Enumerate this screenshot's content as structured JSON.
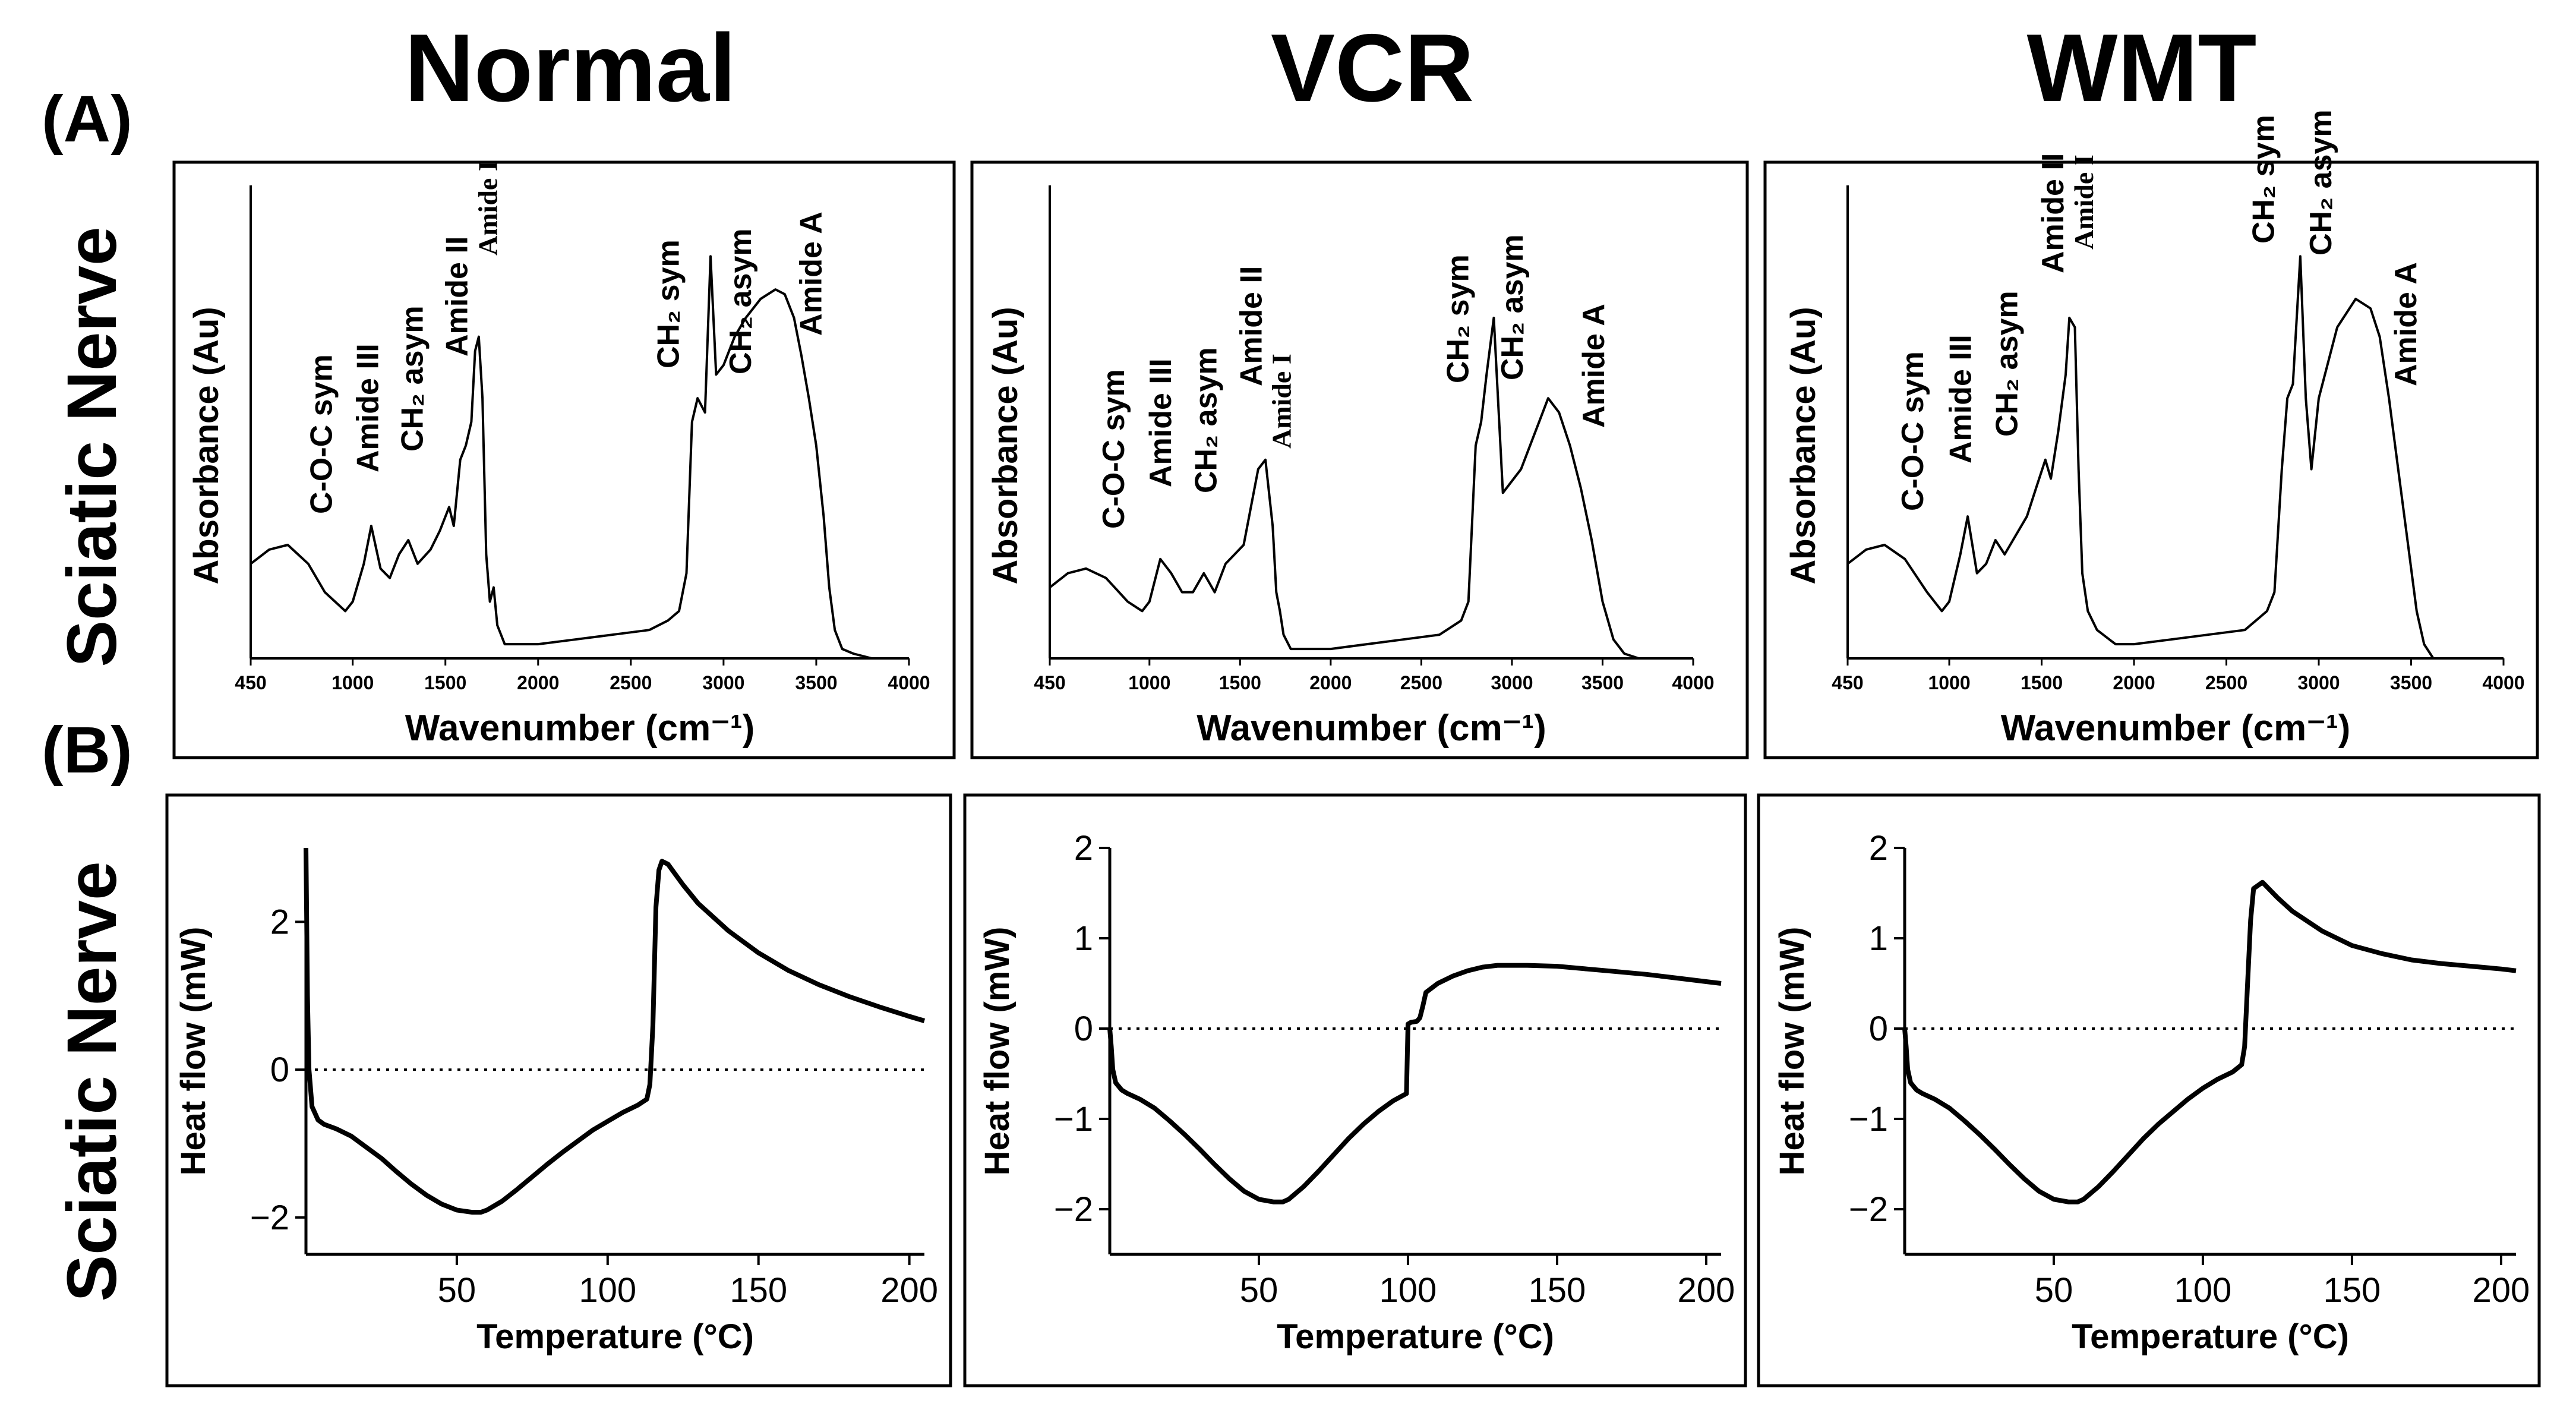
{
  "figure": {
    "panel_a_label": "(A)",
    "panel_b_label": "(B)",
    "row_label_a": "Sciatic Nerve",
    "row_label_b": "Sciatic Nerve",
    "column_titles": [
      "Normal",
      "VCR",
      "WMT"
    ]
  },
  "chart_data": [
    {
      "id": "ftir-normal",
      "type": "line",
      "group": "FTIR",
      "column": "Normal",
      "xlabel": "Wavenumber (cm⁻¹)",
      "ylabel": "Absorbance (Au)",
      "xlim": [
        450,
        4000
      ],
      "ylim": [
        0,
        1
      ],
      "xticks": [
        450,
        1000,
        1500,
        2000,
        2500,
        3000,
        3500,
        4000
      ],
      "annotations": [
        {
          "text": "C-O-C sym",
          "x": 830
        },
        {
          "text": "Amide III",
          "x": 1080
        },
        {
          "text": "CH₂ asym",
          "x": 1320
        },
        {
          "text": "Amide II",
          "x": 1560
        },
        {
          "text": "Amide I",
          "x": 1720
        },
        {
          "text": "CH₂ sym",
          "x": 2700
        },
        {
          "text": "CH₂ asym",
          "x": 3090
        },
        {
          "text": "Amide A",
          "x": 3470
        }
      ],
      "series": [
        {
          "name": "Normal",
          "x": [
            450,
            550,
            650,
            760,
            850,
            960,
            1000,
            1060,
            1100,
            1150,
            1200,
            1250,
            1300,
            1350,
            1420,
            1470,
            1520,
            1545,
            1580,
            1610,
            1640,
            1660,
            1680,
            1700,
            1720,
            1740,
            1760,
            1780,
            1820,
            1900,
            2000,
            2200,
            2400,
            2600,
            2700,
            2760,
            2800,
            2830,
            2860,
            2900,
            2930,
            2960,
            3000,
            3060,
            3120,
            3200,
            3280,
            3330,
            3380,
            3420,
            3460,
            3500,
            3540,
            3570,
            3600,
            3640,
            3700,
            3800,
            4000
          ],
          "values": [
            0.2,
            0.23,
            0.24,
            0.2,
            0.14,
            0.1,
            0.12,
            0.2,
            0.28,
            0.19,
            0.17,
            0.22,
            0.25,
            0.2,
            0.23,
            0.27,
            0.32,
            0.28,
            0.42,
            0.45,
            0.5,
            0.65,
            0.68,
            0.55,
            0.22,
            0.12,
            0.15,
            0.07,
            0.03,
            0.03,
            0.03,
            0.04,
            0.05,
            0.06,
            0.08,
            0.1,
            0.18,
            0.5,
            0.55,
            0.52,
            0.85,
            0.6,
            0.62,
            0.68,
            0.72,
            0.76,
            0.78,
            0.77,
            0.72,
            0.64,
            0.55,
            0.45,
            0.3,
            0.15,
            0.06,
            0.02,
            0.01,
            0.0,
            0.0
          ]
        }
      ]
    },
    {
      "id": "ftir-vcr",
      "type": "line",
      "group": "FTIR",
      "column": "VCR",
      "xlabel": "Wavenumber (cm⁻¹)",
      "ylabel": "Absorbance (Au)",
      "xlim": [
        450,
        4000
      ],
      "ylim": [
        0,
        1
      ],
      "xticks": [
        450,
        1000,
        1500,
        2000,
        2500,
        3000,
        3500,
        4000
      ],
      "annotations": [
        {
          "text": "C-O-C sym",
          "x": 800
        },
        {
          "text": "Amide III",
          "x": 1060
        },
        {
          "text": "CH₂ asym",
          "x": 1310
        },
        {
          "text": "Amide II",
          "x": 1560
        },
        {
          "text": "Amide I",
          "x": 1720
        },
        {
          "text": "CH₂ sym",
          "x": 2700
        },
        {
          "text": "CH₂ asym",
          "x": 3000
        },
        {
          "text": "Amide A",
          "x": 3450
        }
      ],
      "series": [
        {
          "name": "VCR",
          "x": [
            450,
            550,
            650,
            760,
            880,
            960,
            1000,
            1060,
            1120,
            1180,
            1240,
            1300,
            1360,
            1420,
            1470,
            1520,
            1560,
            1600,
            1640,
            1680,
            1700,
            1720,
            1740,
            1780,
            1850,
            2000,
            2200,
            2400,
            2600,
            2720,
            2760,
            2800,
            2830,
            2860,
            2900,
            2950,
            3050,
            3150,
            3200,
            3260,
            3320,
            3380,
            3440,
            3500,
            3560,
            3620,
            3700,
            3800,
            3900
          ],
          "values": [
            0.15,
            0.18,
            0.19,
            0.17,
            0.12,
            0.1,
            0.12,
            0.21,
            0.18,
            0.14,
            0.14,
            0.18,
            0.14,
            0.2,
            0.22,
            0.24,
            0.32,
            0.4,
            0.42,
            0.28,
            0.14,
            0.1,
            0.05,
            0.02,
            0.02,
            0.02,
            0.03,
            0.04,
            0.05,
            0.08,
            0.12,
            0.45,
            0.5,
            0.6,
            0.72,
            0.35,
            0.4,
            0.5,
            0.55,
            0.52,
            0.45,
            0.36,
            0.25,
            0.12,
            0.04,
            0.01,
            0.0,
            0.0,
            0.0
          ]
        }
      ]
    },
    {
      "id": "ftir-wmt",
      "type": "line",
      "group": "FTIR",
      "column": "WMT",
      "xlabel": "Wavenumber (cm⁻¹)",
      "ylabel": "Absorbance (Au)",
      "xlim": [
        450,
        4000
      ],
      "ylim": [
        0,
        1
      ],
      "xticks": [
        450,
        1000,
        1500,
        2000,
        2500,
        3000,
        3500,
        4000
      ],
      "annotations": [
        {
          "text": "C-O-C sym",
          "x": 800
        },
        {
          "text": "Amide III",
          "x": 1060
        },
        {
          "text": "CH₂ asym",
          "x": 1310
        },
        {
          "text": "Amide II",
          "x": 1560
        },
        {
          "text": "Amide I",
          "x": 1720
        },
        {
          "text": "CH₂ sym",
          "x": 2700
        },
        {
          "text": "CH₂ asym",
          "x": 3010
        },
        {
          "text": "Amide A",
          "x": 3470
        }
      ],
      "series": [
        {
          "name": "WMT",
          "x": [
            450,
            550,
            650,
            760,
            880,
            960,
            1000,
            1060,
            1100,
            1150,
            1200,
            1250,
            1300,
            1360,
            1420,
            1470,
            1520,
            1550,
            1590,
            1630,
            1650,
            1680,
            1700,
            1720,
            1750,
            1800,
            1900,
            2000,
            2200,
            2400,
            2600,
            2720,
            2760,
            2800,
            2830,
            2860,
            2900,
            2930,
            2960,
            3000,
            3100,
            3200,
            3280,
            3330,
            3380,
            3430,
            3480,
            3530,
            3570,
            3620,
            3700,
            3800,
            4000
          ],
          "values": [
            0.2,
            0.23,
            0.24,
            0.21,
            0.14,
            0.1,
            0.12,
            0.22,
            0.3,
            0.18,
            0.2,
            0.25,
            0.22,
            0.26,
            0.3,
            0.36,
            0.42,
            0.38,
            0.48,
            0.6,
            0.72,
            0.7,
            0.4,
            0.18,
            0.1,
            0.06,
            0.03,
            0.03,
            0.04,
            0.05,
            0.06,
            0.1,
            0.14,
            0.4,
            0.55,
            0.58,
            0.85,
            0.55,
            0.4,
            0.55,
            0.7,
            0.76,
            0.74,
            0.68,
            0.55,
            0.4,
            0.25,
            0.1,
            0.03,
            0.0,
            0.0,
            0.0,
            0.0
          ]
        }
      ]
    },
    {
      "id": "dsc-normal",
      "type": "line",
      "group": "DSC",
      "column": "Normal",
      "xlabel": "Temperature (°C)",
      "ylabel": "Heat flow (mW)",
      "xlim": [
        0,
        205
      ],
      "ylim": [
        -2.5,
        3.0
      ],
      "xticks": [
        50,
        100,
        150,
        200
      ],
      "yticks": [
        -2,
        0,
        2
      ],
      "ytick_labels": [
        "−2",
        "0",
        "2"
      ],
      "xtick_labels": [
        "50",
        "100",
        "150",
        "200"
      ],
      "zero_line": "dotted",
      "series": [
        {
          "name": "Normal",
          "x": [
            0,
            0.5,
            1,
            2,
            4,
            6,
            10,
            15,
            20,
            25,
            30,
            35,
            40,
            45,
            50,
            55,
            58,
            60,
            65,
            70,
            75,
            80,
            85,
            90,
            95,
            100,
            105,
            110,
            113,
            114,
            115,
            116,
            117,
            118,
            120,
            125,
            130,
            140,
            150,
            160,
            170,
            180,
            190,
            200,
            205
          ],
          "values": [
            3.0,
            1.0,
            0.0,
            -0.5,
            -0.68,
            -0.74,
            -0.8,
            -0.9,
            -1.05,
            -1.2,
            -1.38,
            -1.55,
            -1.7,
            -1.82,
            -1.9,
            -1.93,
            -1.93,
            -1.9,
            -1.78,
            -1.62,
            -1.45,
            -1.28,
            -1.12,
            -0.97,
            -0.82,
            -0.7,
            -0.58,
            -0.48,
            -0.4,
            -0.2,
            0.6,
            2.2,
            2.7,
            2.82,
            2.78,
            2.5,
            2.25,
            1.88,
            1.58,
            1.34,
            1.15,
            0.99,
            0.85,
            0.72,
            0.66
          ]
        }
      ]
    },
    {
      "id": "dsc-vcr",
      "type": "line",
      "group": "DSC",
      "column": "VCR",
      "xlabel": "Temperature (°C)",
      "ylabel": "Heat flow (mW)",
      "xlim": [
        0,
        205
      ],
      "ylim": [
        -2.5,
        2.0
      ],
      "xticks": [
        50,
        100,
        150,
        200
      ],
      "yticks": [
        -2,
        -1,
        0,
        1,
        2
      ],
      "ytick_labels": [
        "−2",
        "−1",
        "0",
        "1",
        "2"
      ],
      "xtick_labels": [
        "50",
        "100",
        "150",
        "200"
      ],
      "zero_line": "dotted",
      "series": [
        {
          "name": "VCR",
          "x": [
            0,
            0.5,
            1,
            2,
            4,
            6,
            10,
            15,
            20,
            25,
            30,
            35,
            40,
            45,
            50,
            55,
            58,
            60,
            65,
            70,
            75,
            80,
            85,
            90,
            95,
            99.5,
            100,
            101,
            103,
            104,
            105,
            106,
            110,
            115,
            120,
            125,
            130,
            140,
            150,
            160,
            170,
            180,
            190,
            200,
            205
          ],
          "values": [
            0.0,
            -0.2,
            -0.45,
            -0.6,
            -0.68,
            -0.72,
            -0.78,
            -0.88,
            -1.02,
            -1.17,
            -1.33,
            -1.5,
            -1.66,
            -1.8,
            -1.89,
            -1.92,
            -1.92,
            -1.89,
            -1.75,
            -1.58,
            -1.4,
            -1.22,
            -1.06,
            -0.92,
            -0.8,
            -0.72,
            0.05,
            0.07,
            0.08,
            0.12,
            0.25,
            0.4,
            0.5,
            0.58,
            0.64,
            0.68,
            0.7,
            0.7,
            0.69,
            0.66,
            0.63,
            0.6,
            0.56,
            0.52,
            0.5
          ]
        }
      ]
    },
    {
      "id": "dsc-wmt",
      "type": "line",
      "group": "DSC",
      "column": "WMT",
      "xlabel": "Temperature (°C)",
      "ylabel": "Heat flow (mW)",
      "xlim": [
        0,
        205
      ],
      "ylim": [
        -2.5,
        2.0
      ],
      "xticks": [
        50,
        100,
        150,
        200
      ],
      "yticks": [
        -2,
        -1,
        0,
        1,
        2
      ],
      "ytick_labels": [
        "−2",
        "−1",
        "0",
        "1",
        "2"
      ],
      "xtick_labels": [
        "50",
        "100",
        "150",
        "200"
      ],
      "zero_line": "dotted",
      "series": [
        {
          "name": "WMT",
          "x": [
            0,
            0.5,
            1,
            2,
            4,
            6,
            10,
            15,
            20,
            25,
            30,
            35,
            40,
            45,
            50,
            55,
            58,
            60,
            65,
            70,
            75,
            80,
            85,
            90,
            95,
            100,
            105,
            110,
            113,
            114,
            115,
            116,
            117,
            120,
            125,
            130,
            140,
            150,
            160,
            170,
            180,
            190,
            200,
            205
          ],
          "values": [
            0.0,
            -0.2,
            -0.45,
            -0.6,
            -0.68,
            -0.72,
            -0.78,
            -0.88,
            -1.02,
            -1.17,
            -1.33,
            -1.5,
            -1.66,
            -1.8,
            -1.89,
            -1.92,
            -1.92,
            -1.89,
            -1.75,
            -1.58,
            -1.4,
            -1.22,
            -1.06,
            -0.92,
            -0.78,
            -0.66,
            -0.56,
            -0.48,
            -0.4,
            -0.2,
            0.5,
            1.2,
            1.55,
            1.62,
            1.45,
            1.3,
            1.08,
            0.92,
            0.83,
            0.76,
            0.72,
            0.69,
            0.66,
            0.64
          ]
        }
      ]
    }
  ]
}
